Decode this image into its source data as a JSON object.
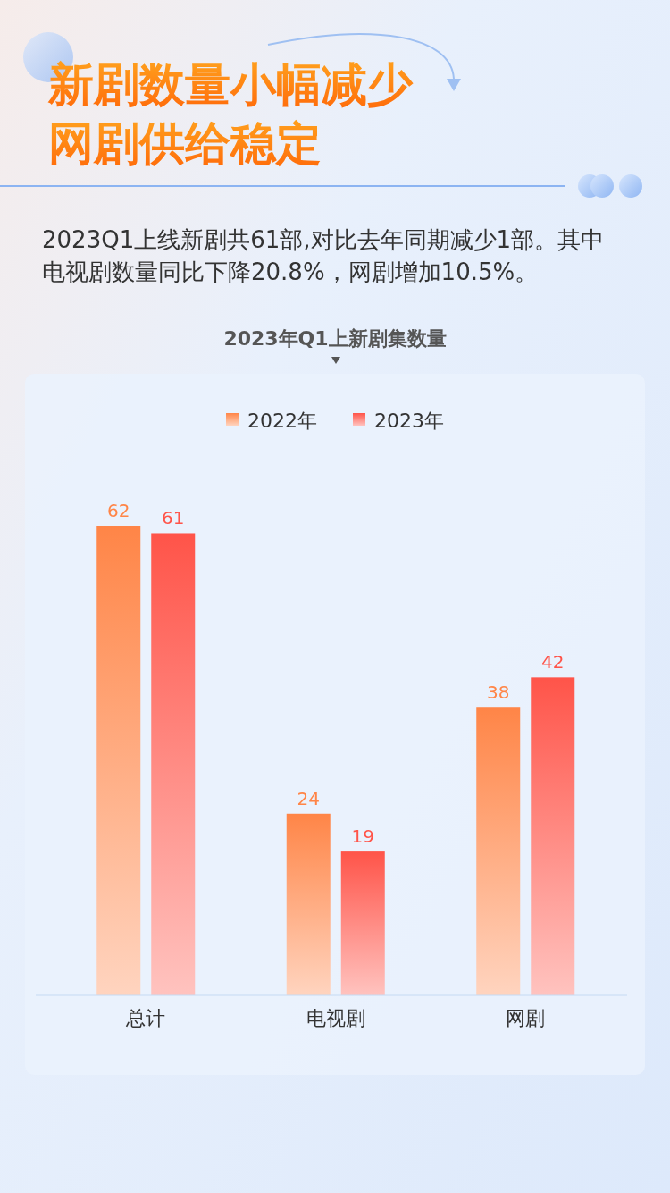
{
  "chart_data": {
    "type": "bar",
    "title": "新剧数量小幅减少网剧供给稳定",
    "subtitle": "2023Q1上线新剧共61部,对比去年同期减少1部。其中电视剧数量同比下降20.8%，网剧增加10.5%。",
    "annotations": [
      "2023年Q1上新剧集数量"
    ],
    "categories": [
      "总计",
      "电视剧",
      "网剧"
    ],
    "series": [
      {
        "name": "2022年",
        "color": "#ff8547",
        "values": [
          62,
          24,
          38
        ]
      },
      {
        "name": "2023年",
        "color": "#ff5449",
        "values": [
          61,
          19,
          42
        ]
      }
    ],
    "data_labels": true,
    "legend": "top"
  }
}
